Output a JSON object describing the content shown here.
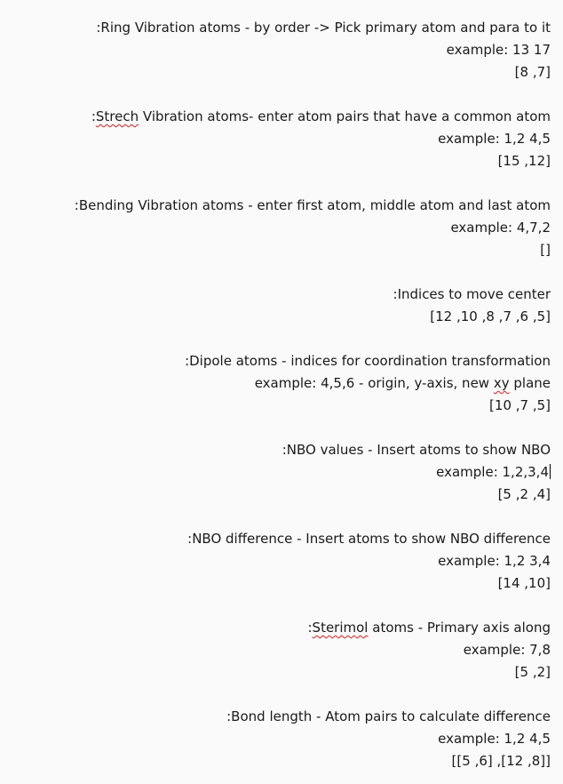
{
  "sections": [
    {
      "title_parts": [
        ":Ring Vibration atoms - by order -> Pick primary atom and para to it"
      ],
      "example": "example: 13 17",
      "value": "[8 ,7]"
    },
    {
      "title_parts": [
        ":",
        "Strech",
        " Vibration atoms- enter atom pairs that have a common atom"
      ],
      "example": "example: 1,2 4,5",
      "value": "[15 ,12]"
    },
    {
      "title_parts": [
        ":Bending Vibration atoms - enter first atom, middle atom and last atom"
      ],
      "example": "example: 4,7,2",
      "value": "[]"
    },
    {
      "title_parts": [
        ":Indices to move center"
      ],
      "value": "[12 ,10 ,8 ,7 ,6 ,5]"
    },
    {
      "title_parts": [
        ":Dipole atoms - indices for coordination transformation"
      ],
      "example_parts": [
        "example: 4,5,6 - origin, y-axis, new ",
        "xy",
        " plane"
      ],
      "value": "[10 ,7 ,5]"
    },
    {
      "title_parts": [
        ":NBO values - Insert atoms to show NBO"
      ],
      "example": "example: 1,2,3,4",
      "value": "[5 ,2 ,4]"
    },
    {
      "title_parts": [
        ":NBO difference - Insert atoms to show NBO difference"
      ],
      "example": "example: 1,2 3,4",
      "value": "[14 ,10]"
    },
    {
      "title_parts": [
        ":",
        "Sterimol",
        " atoms - Primary axis along"
      ],
      "example": "example: 7,8",
      "value": "[5 ,2]"
    },
    {
      "title_parts": [
        ":Bond length - Atom pairs to calculate difference"
      ],
      "example": "example: 1,2 4,5",
      "value": "[[5 ,6] ,[12 ,8]]"
    }
  ]
}
